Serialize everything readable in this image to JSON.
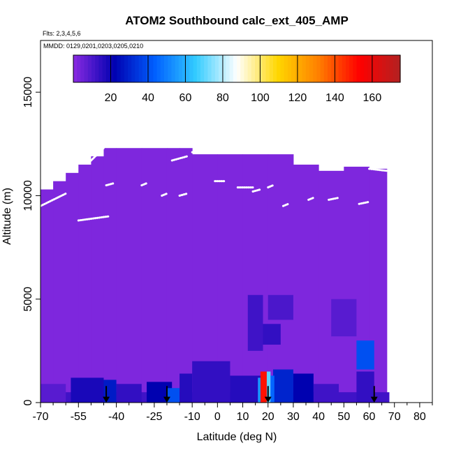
{
  "chart_data": {
    "type": "heatmap",
    "title": "ATOM2 Southbound calc_ext_405_AMP",
    "subtitle_flights": "Flts: 2,3,4,5,6",
    "subtitle_dates": "MMDD: 0129,0201,0203,0205,0210",
    "xlabel": "Latitude (deg N)",
    "ylabel": "Altitude (m)",
    "xlim": [
      -70,
      85
    ],
    "ylim": [
      0,
      17500
    ],
    "x_ticks": [
      -70,
      -55,
      -40,
      -25,
      -10,
      0,
      10,
      20,
      30,
      40,
      50,
      60,
      70,
      80
    ],
    "x_minor_ticks": [
      -65,
      -60,
      -50,
      -45,
      -35,
      -30,
      -20,
      -15,
      -5,
      5,
      15,
      25,
      35,
      45,
      55,
      65,
      75,
      85
    ],
    "y_ticks": [
      0,
      5000,
      10000,
      15000
    ],
    "colorbar": {
      "ticks": [
        20,
        40,
        60,
        80,
        100,
        120,
        140,
        160
      ],
      "range": [
        0,
        175
      ],
      "colors": [
        "#8b2be2",
        "#0000b0",
        "#0060ff",
        "#33ccff",
        "#ffffff",
        "#ffd700",
        "#ff7f00",
        "#ff0000",
        "#b22222"
      ]
    },
    "background_value": 2,
    "column_tops": [
      {
        "x": -70,
        "top": 10300
      },
      {
        "x": -65,
        "top": 10700
      },
      {
        "x": -60,
        "top": 11100
      },
      {
        "x": -55,
        "top": 11500
      },
      {
        "x": -50,
        "top": 11900
      },
      {
        "x": -45,
        "top": 12300
      },
      {
        "x": -40,
        "top": 12300
      },
      {
        "x": -30,
        "top": 12300
      },
      {
        "x": -20,
        "top": 12300
      },
      {
        "x": -15,
        "top": 12300
      },
      {
        "x": -10,
        "top": 12000
      },
      {
        "x": 0,
        "top": 12000
      },
      {
        "x": 10,
        "top": 12000
      },
      {
        "x": 20,
        "top": 12000
      },
      {
        "x": 30,
        "top": 11500
      },
      {
        "x": 40,
        "top": 11200
      },
      {
        "x": 50,
        "top": 11400
      },
      {
        "x": 60,
        "top": 11300
      },
      {
        "x": 67,
        "top": 11300
      }
    ],
    "enhanced_regions": [
      {
        "x": [
          -70,
          68
        ],
        "y": [
          0,
          500
        ],
        "value": 12
      },
      {
        "x": [
          -70,
          -60
        ],
        "y": [
          0,
          900
        ],
        "value": 8
      },
      {
        "x": [
          -58,
          -45
        ],
        "y": [
          0,
          1200
        ],
        "value": 18
      },
      {
        "x": [
          -45,
          -40
        ],
        "y": [
          0,
          1100
        ],
        "value": 28
      },
      {
        "x": [
          -40,
          -30
        ],
        "y": [
          0,
          900
        ],
        "value": 14
      },
      {
        "x": [
          -28,
          -18
        ],
        "y": [
          0,
          1000
        ],
        "value": 22
      },
      {
        "x": [
          -20,
          -15
        ],
        "y": [
          0,
          700
        ],
        "value": 40
      },
      {
        "x": [
          -15,
          -10
        ],
        "y": [
          0,
          1400
        ],
        "value": 16
      },
      {
        "x": [
          -10,
          5
        ],
        "y": [
          0,
          2000
        ],
        "value": 14
      },
      {
        "x": [
          5,
          18
        ],
        "y": [
          0,
          1300
        ],
        "value": 16
      },
      {
        "x": [
          12,
          18
        ],
        "y": [
          2500,
          5200
        ],
        "value": 12
      },
      {
        "x": [
          18,
          25
        ],
        "y": [
          2800,
          3800
        ],
        "value": 14
      },
      {
        "x": [
          20,
          30
        ],
        "y": [
          4000,
          5200
        ],
        "value": 10
      },
      {
        "x": [
          22,
          30
        ],
        "y": [
          0,
          1600
        ],
        "value": 30
      },
      {
        "x": [
          30,
          38
        ],
        "y": [
          0,
          1400
        ],
        "value": 22
      },
      {
        "x": [
          38,
          48
        ],
        "y": [
          0,
          900
        ],
        "value": 12
      },
      {
        "x": [
          45,
          55
        ],
        "y": [
          3200,
          5000
        ],
        "value": 8
      },
      {
        "x": [
          55,
          62
        ],
        "y": [
          1600,
          3000
        ],
        "value": 40
      },
      {
        "x": [
          55,
          62
        ],
        "y": [
          0,
          1500
        ],
        "value": 14
      },
      {
        "x": [
          17,
          19.5
        ],
        "y": [
          0,
          1500
        ],
        "value": 150
      },
      {
        "x": [
          19.5,
          21
        ],
        "y": [
          0,
          1500
        ],
        "value": 70
      },
      {
        "x": [
          16,
          17
        ],
        "y": [
          0,
          1200
        ],
        "value": 55
      },
      {
        "x": [
          21,
          22.5
        ],
        "y": [
          0,
          1300
        ],
        "value": 45
      }
    ],
    "flight_tracks": [
      {
        "x": [
          -70,
          -60
        ],
        "y": [
          9500,
          10100
        ]
      },
      {
        "x": [
          -55,
          -43
        ],
        "y": [
          8800,
          9000
        ]
      },
      {
        "x": [
          -50,
          -45
        ],
        "y": [
          11700,
          12300
        ]
      },
      {
        "x": [
          -44,
          -41
        ],
        "y": [
          10500,
          10600
        ]
      },
      {
        "x": [
          -30,
          -28
        ],
        "y": [
          10500,
          10600
        ]
      },
      {
        "x": [
          -22,
          -20
        ],
        "y": [
          10000,
          10100
        ]
      },
      {
        "x": [
          -15,
          -12
        ],
        "y": [
          10000,
          10100
        ]
      },
      {
        "x": [
          -18,
          -12
        ],
        "y": [
          11700,
          11900
        ]
      },
      {
        "x": [
          -10,
          -8
        ],
        "y": [
          12100,
          12100
        ]
      },
      {
        "x": [
          -1,
          3
        ],
        "y": [
          10700,
          10700
        ]
      },
      {
        "x": [
          8,
          14
        ],
        "y": [
          10400,
          10400
        ]
      },
      {
        "x": [
          14,
          17
        ],
        "y": [
          10200,
          10300
        ]
      },
      {
        "x": [
          20,
          22
        ],
        "y": [
          10400,
          10500
        ]
      },
      {
        "x": [
          26,
          28
        ],
        "y": [
          9500,
          9600
        ]
      },
      {
        "x": [
          36,
          38
        ],
        "y": [
          9800,
          9900
        ]
      },
      {
        "x": [
          44,
          48
        ],
        "y": [
          9800,
          9900
        ]
      },
      {
        "x": [
          56,
          60
        ],
        "y": [
          9600,
          9700
        ]
      },
      {
        "x": [
          60,
          67
        ],
        "y": [
          11300,
          11200
        ]
      }
    ],
    "surface_markers": [
      -44,
      -20,
      20,
      62
    ]
  }
}
